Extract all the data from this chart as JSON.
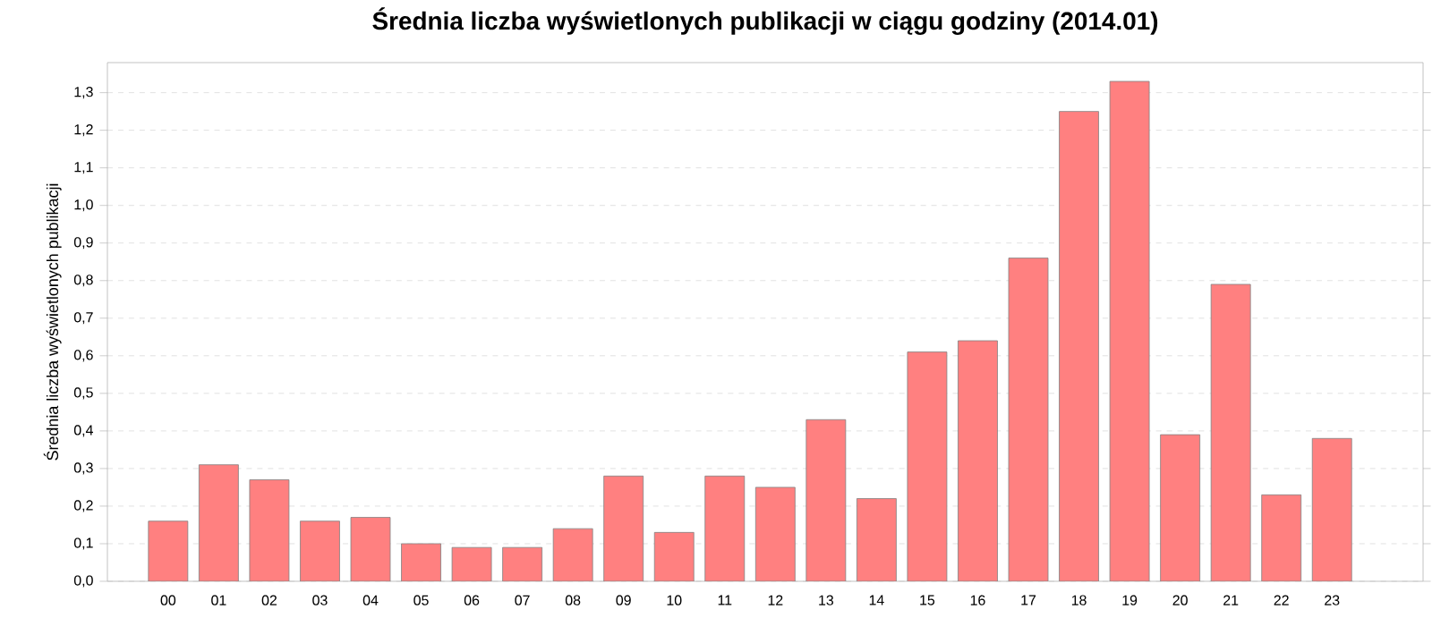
{
  "chart_data": {
    "type": "bar",
    "title": "Średnia liczba wyświetlonych publikacji w ciągu godziny (2014.01)",
    "ylabel": "Średnia liczba wyświetlonych publikacji",
    "categories": [
      "00",
      "01",
      "02",
      "03",
      "04",
      "05",
      "06",
      "07",
      "08",
      "09",
      "10",
      "11",
      "12",
      "13",
      "14",
      "15",
      "16",
      "17",
      "18",
      "19",
      "20",
      "21",
      "22",
      "23"
    ],
    "values": [
      0.16,
      0.31,
      0.27,
      0.16,
      0.17,
      0.1,
      0.09,
      0.09,
      0.14,
      0.28,
      0.13,
      0.28,
      0.25,
      0.43,
      0.22,
      0.61,
      0.64,
      0.86,
      1.25,
      1.33,
      0.39,
      0.79,
      0.23,
      0.38
    ],
    "color": "#ff8080",
    "ylim": [
      0,
      1.38
    ],
    "yticks": [
      {
        "value": 0,
        "label": "0,0"
      },
      {
        "value": 0.1,
        "label": "0,1"
      },
      {
        "value": 0.2,
        "label": "0,2"
      },
      {
        "value": 0.3,
        "label": "0,3"
      },
      {
        "value": 0.4,
        "label": "0,4"
      },
      {
        "value": 0.5,
        "label": "0,5"
      },
      {
        "value": 0.6,
        "label": "0,6"
      },
      {
        "value": 0.7,
        "label": "0,7"
      },
      {
        "value": 0.8,
        "label": "0,8"
      },
      {
        "value": 0.9,
        "label": "0,9"
      },
      {
        "value": 1.0,
        "label": "1,0"
      },
      {
        "value": 1.1,
        "label": "1,1"
      },
      {
        "value": 1.2,
        "label": "1,2"
      },
      {
        "value": 1.3,
        "label": "1,3"
      }
    ],
    "grid": "y"
  }
}
